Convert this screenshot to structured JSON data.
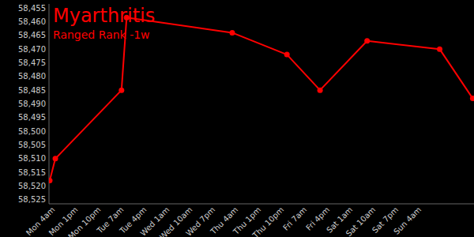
{
  "chart_data": {
    "type": "line",
    "title": "Myarthritis",
    "subtitle": "Ranged Rank -1w",
    "x": [
      1.8,
      4,
      30,
      32,
      73.5,
      95,
      108,
      126.5,
      155,
      168
    ],
    "values": [
      58518,
      58510,
      58485,
      58458.5,
      58464,
      58472,
      58485,
      58467,
      58470,
      58488
    ],
    "color": "#ff0000",
    "marker": "circle",
    "xlim": [
      1.5,
      168.5
    ],
    "ylim": [
      58526.5,
      58453.5
    ],
    "xticks": [
      {
        "value": 4,
        "label": "Mon 4am"
      },
      {
        "value": 13,
        "label": "Mon 1pm"
      },
      {
        "value": 22,
        "label": "Mon 10pm"
      },
      {
        "value": 31,
        "label": "Tue 7am"
      },
      {
        "value": 40,
        "label": "Tue 4pm"
      },
      {
        "value": 49,
        "label": "Wed 1am"
      },
      {
        "value": 58,
        "label": "Wed 10am"
      },
      {
        "value": 67,
        "label": "Wed 7pm"
      },
      {
        "value": 76,
        "label": "Thu 4am"
      },
      {
        "value": 85,
        "label": "Thu 1pm"
      },
      {
        "value": 94,
        "label": "Thu 10pm"
      },
      {
        "value": 103,
        "label": "Fri 7am"
      },
      {
        "value": 112,
        "label": "Fri 4pm"
      },
      {
        "value": 121,
        "label": "Sat 1am"
      },
      {
        "value": 130,
        "label": "Sat 10am"
      },
      {
        "value": 139,
        "label": "Sat 7pm"
      },
      {
        "value": 148,
        "label": "Sun 4am"
      }
    ],
    "yticks": [
      {
        "value": 58455,
        "label": "58,455"
      },
      {
        "value": 58460,
        "label": "58,460"
      },
      {
        "value": 58465,
        "label": "58,465"
      },
      {
        "value": 58470,
        "label": "58,470"
      },
      {
        "value": 58475,
        "label": "58,475"
      },
      {
        "value": 58480,
        "label": "58,480"
      },
      {
        "value": 58485,
        "label": "58,485"
      },
      {
        "value": 58490,
        "label": "58,490"
      },
      {
        "value": 58495,
        "label": "58,495"
      },
      {
        "value": 58500,
        "label": "58,500"
      },
      {
        "value": 58505,
        "label": "58,505"
      },
      {
        "value": 58510,
        "label": "58,510"
      },
      {
        "value": 58515,
        "label": "58,515"
      },
      {
        "value": 58520,
        "label": "58,520"
      },
      {
        "value": 58525,
        "label": "58,525"
      }
    ]
  }
}
